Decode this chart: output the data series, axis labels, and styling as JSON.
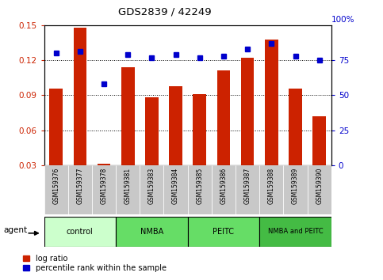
{
  "title": "GDS2839 / 42249",
  "samples": [
    "GSM159376",
    "GSM159377",
    "GSM159378",
    "GSM159381",
    "GSM159383",
    "GSM159384",
    "GSM159385",
    "GSM159386",
    "GSM159387",
    "GSM159388",
    "GSM159389",
    "GSM159390"
  ],
  "log_ratio": [
    0.096,
    0.148,
    0.031,
    0.114,
    0.088,
    0.098,
    0.091,
    0.111,
    0.122,
    0.138,
    0.096,
    0.072
  ],
  "percentile_rank": [
    80,
    81,
    58,
    79,
    77,
    79,
    77,
    78,
    83,
    87,
    78,
    75
  ],
  "bar_color": "#cc2200",
  "dot_color": "#0000cc",
  "ylim_left": [
    0.03,
    0.15
  ],
  "ylim_right": [
    0,
    100
  ],
  "yticks_left": [
    0.03,
    0.06,
    0.09,
    0.12,
    0.15
  ],
  "yticks_right": [
    0,
    25,
    50,
    75
  ],
  "groups": [
    {
      "label": "control",
      "start": 0,
      "end": 3,
      "color": "#ccffcc"
    },
    {
      "label": "NMBA",
      "start": 3,
      "end": 6,
      "color": "#66dd66"
    },
    {
      "label": "PEITC",
      "start": 6,
      "end": 9,
      "color": "#66dd66"
    },
    {
      "label": "NMBA and PEITC",
      "start": 9,
      "end": 12,
      "color": "#44bb44"
    }
  ],
  "agent_label": "agent",
  "legend_bar_label": "log ratio",
  "legend_dot_label": "percentile rank within the sample",
  "background_color": "#ffffff",
  "plot_bg_color": "#ffffff",
  "left_tick_color": "#cc2200",
  "right_tick_color": "#0000cc",
  "grid_color": "#000000",
  "tick_label_area_color": "#c8c8c8"
}
